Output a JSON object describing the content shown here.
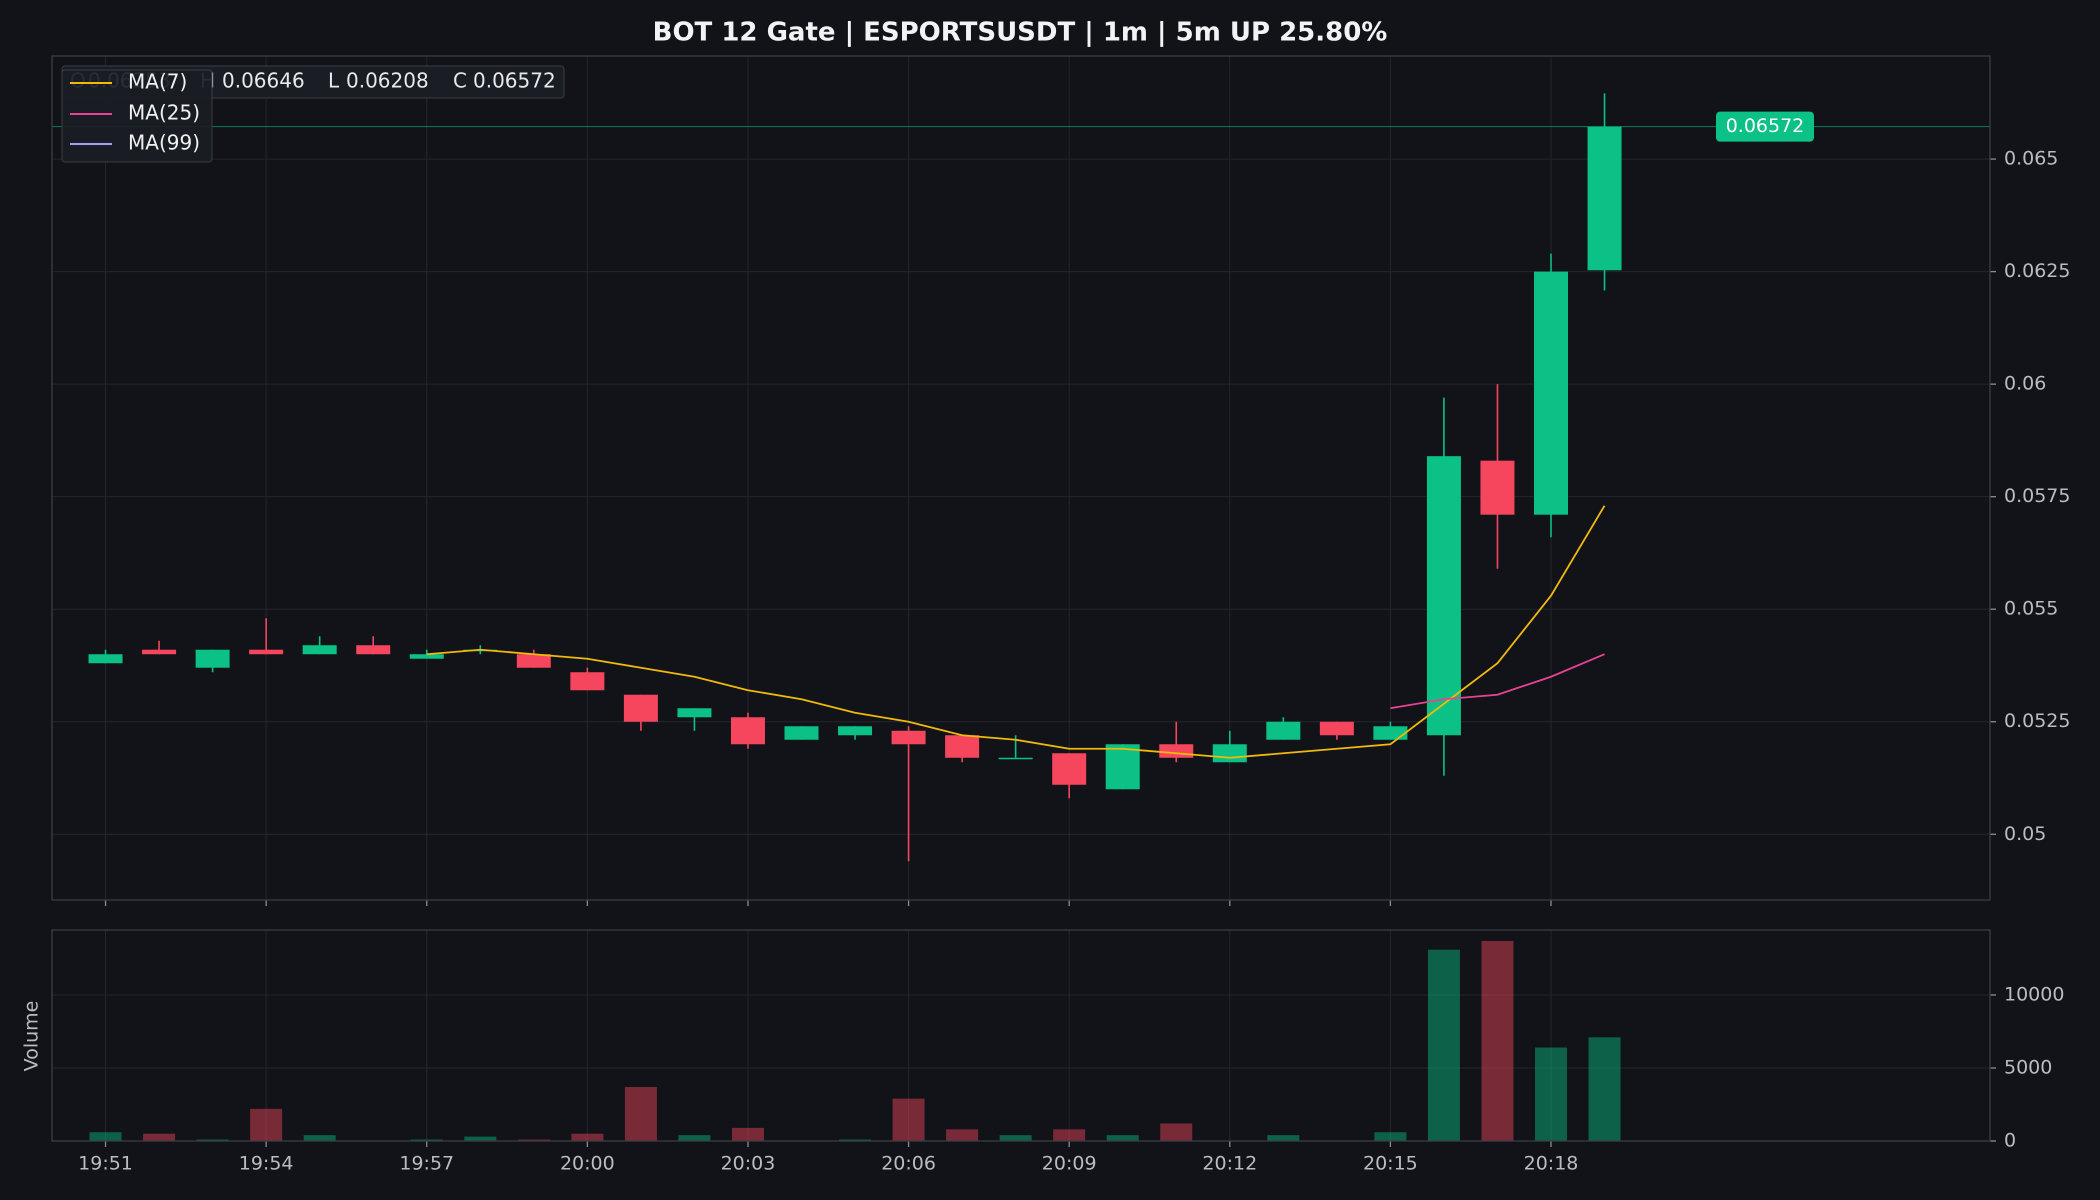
{
  "chart_data": {
    "type": "candlestick",
    "title": "BOT 12 Gate | ESPORTSUSDT | 1m | 5m UP 25.80%",
    "categories": [
      "19:51",
      null,
      null,
      "19:54",
      null,
      null,
      "19:57",
      null,
      null,
      "20:00",
      null,
      null,
      "20:03",
      null,
      null,
      "20:06",
      null,
      null,
      "20:09",
      null,
      null,
      "20:12",
      null,
      null,
      "20:15",
      null,
      null,
      "20:18",
      null
    ],
    "open": [
      0.0538,
      0.0541,
      0.0537,
      0.0541,
      0.054,
      0.0542,
      0.0539,
      0.0541,
      0.054,
      0.0536,
      0.0531,
      0.0526,
      0.0526,
      0.0521,
      0.0522,
      0.0523,
      0.0522,
      0.0517,
      0.0518,
      0.051,
      0.052,
      0.0516,
      0.0521,
      0.0525,
      0.0521,
      0.0522,
      0.0583,
      0.0571,
      0.06253
    ],
    "high": [
      0.0541,
      0.0543,
      0.0541,
      0.0548,
      0.0544,
      0.0544,
      0.0541,
      0.0542,
      0.0541,
      0.0537,
      0.0531,
      0.0528,
      0.0527,
      0.0524,
      0.0524,
      0.0524,
      0.0522,
      0.0522,
      0.0518,
      0.052,
      0.0525,
      0.0523,
      0.0526,
      0.0525,
      0.0525,
      0.0597,
      0.06,
      0.0629,
      0.06646
    ],
    "low": [
      0.0538,
      0.054,
      0.0536,
      0.054,
      0.054,
      0.054,
      0.0539,
      0.054,
      0.0537,
      0.0532,
      0.0523,
      0.0523,
      0.0519,
      0.0521,
      0.0521,
      0.0494,
      0.0516,
      0.0517,
      0.0508,
      0.051,
      0.0516,
      0.0516,
      0.0521,
      0.0521,
      0.0521,
      0.0513,
      0.0559,
      0.0566,
      0.06208
    ],
    "close": [
      0.054,
      0.054,
      0.0541,
      0.054,
      0.0542,
      0.054,
      0.054,
      0.0541,
      0.0537,
      0.0532,
      0.0525,
      0.0528,
      0.052,
      0.0524,
      0.0524,
      0.052,
      0.0517,
      0.0517,
      0.0511,
      0.052,
      0.0517,
      0.052,
      0.0525,
      0.0522,
      0.0524,
      0.0584,
      0.0571,
      0.0625,
      0.06572
    ],
    "up_color": "#0bc185",
    "down_color": "#f6465d",
    "info_labels": [
      "O",
      "H",
      "L",
      "C"
    ],
    "ylim": [
      0.04854,
      0.06729
    ],
    "yticks": [
      0.05,
      0.0525,
      0.055,
      0.0575,
      0.06,
      0.0625,
      0.065
    ],
    "grid": true,
    "series": [
      {
        "name": "MA(7)",
        "color": "#f0b90b",
        "values": [
          null,
          null,
          null,
          null,
          null,
          null,
          0.054,
          0.0541,
          0.054,
          0.0539,
          0.0537,
          0.0535,
          0.0532,
          0.053,
          0.0527,
          0.0525,
          0.0522,
          0.0521,
          0.0519,
          0.0519,
          0.0518,
          0.0517,
          0.0518,
          0.0519,
          0.052,
          0.0529,
          0.0538,
          0.0553,
          0.0573
        ]
      },
      {
        "name": "MA(25)",
        "color": "#e84393",
        "values": [
          null,
          null,
          null,
          null,
          null,
          null,
          null,
          null,
          null,
          null,
          null,
          null,
          null,
          null,
          null,
          null,
          null,
          null,
          null,
          null,
          null,
          null,
          null,
          null,
          0.0528,
          0.053,
          0.0531,
          0.0535,
          0.054
        ]
      },
      {
        "name": "MA(99)",
        "color": "#a99bf2",
        "values": [
          null,
          null,
          null,
          null,
          null,
          null,
          null,
          null,
          null,
          null,
          null,
          null,
          null,
          null,
          null,
          null,
          null,
          null,
          null,
          null,
          null,
          null,
          null,
          null,
          null,
          null,
          null,
          null,
          null
        ]
      }
    ],
    "volume": {
      "label": "Volume",
      "values": [
        600,
        500,
        100,
        2200,
        400,
        0,
        100,
        300,
        100,
        500,
        3700,
        400,
        900,
        0,
        100,
        2900,
        800,
        400,
        800,
        400,
        1200,
        0,
        400,
        0,
        600,
        13100,
        13700,
        6400,
        7100
      ],
      "ylim": [
        0,
        14450
      ],
      "yticks": [
        0,
        5000,
        10000
      ]
    }
  }
}
